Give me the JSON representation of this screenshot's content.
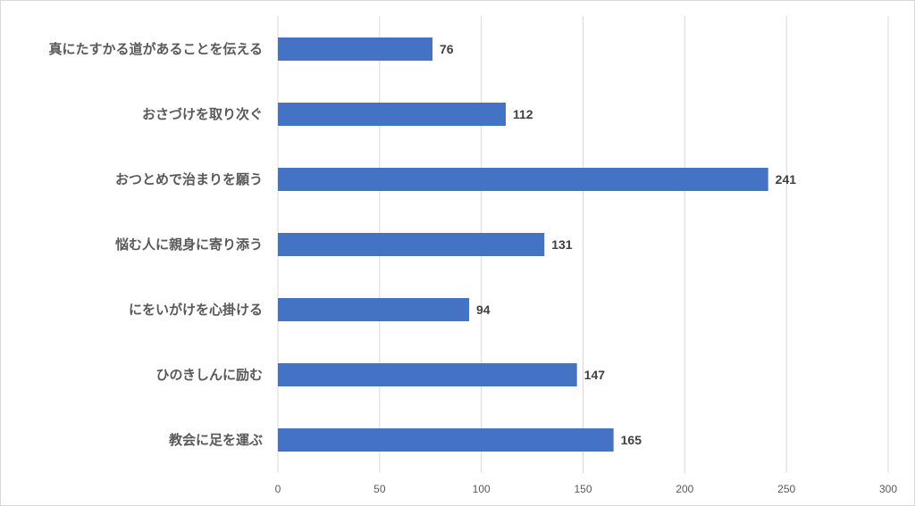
{
  "chart_data": {
    "type": "bar",
    "orientation": "horizontal",
    "categories": [
      "真にたすかる道があることを伝える",
      "おさづけを取り次ぐ",
      "おつとめで治まりを願う",
      "悩む人に親身に寄り添う",
      "にをいがけを心掛ける",
      "ひのきしんに励む",
      "教会に足を運ぶ"
    ],
    "values": [
      76,
      112,
      241,
      131,
      94,
      147,
      165
    ],
    "xlim": [
      0,
      300
    ],
    "xticks": [
      0,
      50,
      100,
      150,
      200,
      250,
      300
    ],
    "grid": true,
    "data_labels": true,
    "bar_color": "#4472C4",
    "grid_color": "#d9d9d9",
    "title": "",
    "xlabel": "",
    "ylabel": ""
  }
}
